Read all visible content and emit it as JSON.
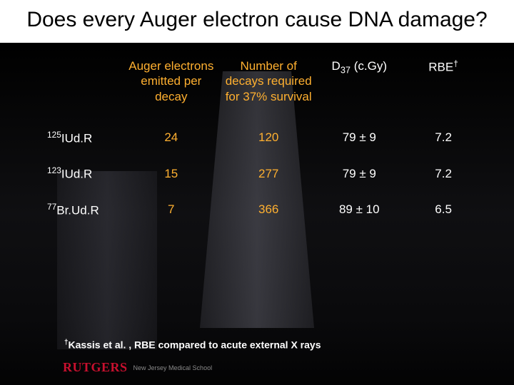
{
  "title": "Does every Auger electron cause DNA damage?",
  "headers": {
    "col0": "",
    "col1": "Auger electrons emitted per decay",
    "col2": "Number of decays required for 37% survival",
    "col3_prefix": "D",
    "col3_sub": "37",
    "col3_suffix": " (c.Gy)",
    "col4_prefix": "RBE",
    "col4_dagger": "†"
  },
  "rows": [
    {
      "iso_sup": "125",
      "iso_label": "IUd.R",
      "c1": "24",
      "c2": "120",
      "c3": "79 ± 9",
      "c4": "7.2"
    },
    {
      "iso_sup": "123",
      "iso_label": "IUd.R",
      "c1": "15",
      "c2": "277",
      "c3": "79 ± 9",
      "c4": "7.2"
    },
    {
      "iso_sup": "77",
      "iso_label": "Br.Ud.R",
      "c1": "7",
      "c2": "366",
      "c3": "89 ± 10",
      "c4": "6.5"
    }
  ],
  "footnote": {
    "dagger": "†",
    "text": "Kassis et al. , RBE compared to acute external X rays"
  },
  "logo": {
    "name": "RUTGERS",
    "sub": "New Jersey Medical School"
  },
  "colors": {
    "background": "#000000",
    "title_bg": "#ffffff",
    "title_text": "#000000",
    "body_text": "#ffffff",
    "highlight": "#ffb030",
    "logo": "#c8102e"
  }
}
